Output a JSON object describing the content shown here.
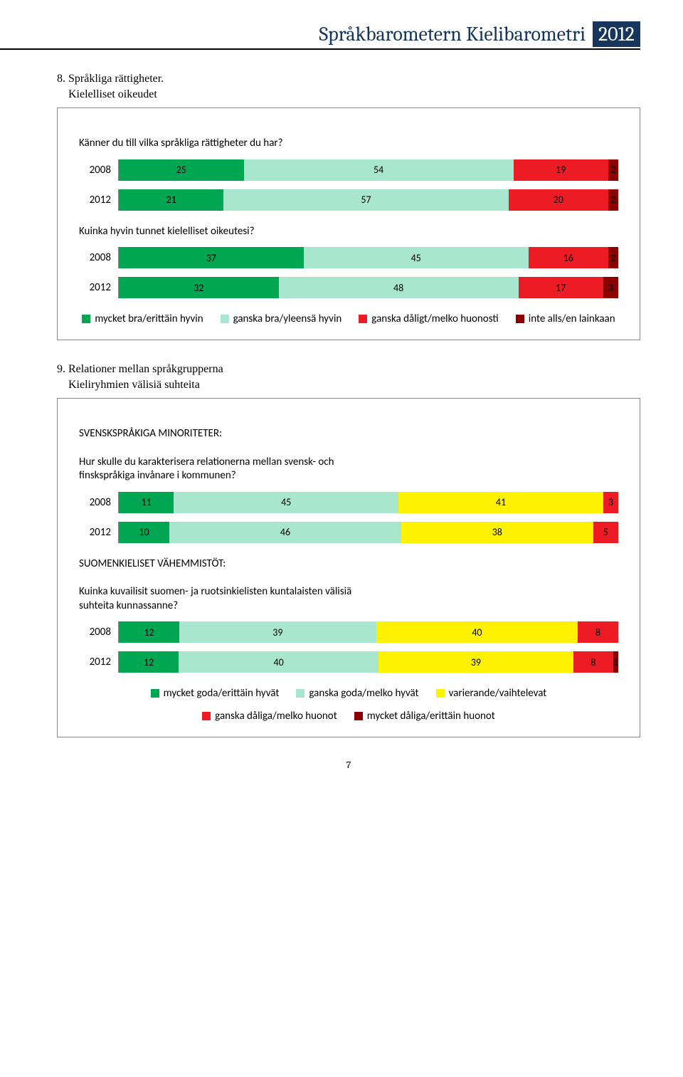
{
  "header": {
    "title": "Språkbarometern Kielibarometri",
    "year": "2012"
  },
  "section1": {
    "number": "8.",
    "title_sv": "Språkliga rättigheter.",
    "title_fi": "Kielelliset oikeudet"
  },
  "chart1": {
    "type": "stacked_bar_horizontal",
    "label_fontsize": 15,
    "value_fontsize": 14,
    "groups": [
      {
        "label": "Känner du till vilka språkliga rättigheter du har?",
        "rows": [
          {
            "year": "2008",
            "values": [
              25,
              54,
              19,
              2
            ]
          },
          {
            "year": "2012",
            "values": [
              21,
              57,
              20,
              2
            ]
          }
        ]
      },
      {
        "label": "Kuinka hyvin tunnet kielelliset oikeutesi?",
        "rows": [
          {
            "year": "2008",
            "values": [
              37,
              45,
              16,
              2
            ]
          },
          {
            "year": "2012",
            "values": [
              32,
              48,
              17,
              3
            ]
          }
        ]
      }
    ],
    "colors": [
      "#00a651",
      "#a8e6cf",
      "#ed1c24",
      "#8b0000"
    ],
    "legend": [
      {
        "label": "mycket bra/erittäin hyvin",
        "color": "#00a651"
      },
      {
        "label": "ganska bra/yleensä hyvin",
        "color": "#a8e6cf"
      },
      {
        "label": "ganska dåligt/melko huonosti",
        "color": "#ed1c24"
      },
      {
        "label": "inte alls/en lainkaan",
        "color": "#8b0000"
      }
    ]
  },
  "section2": {
    "number": "9.",
    "title_sv": "Relationer mellan språkgrupperna",
    "title_fi": "Kieliryhmien välisiä suhteita"
  },
  "chart2": {
    "type": "stacked_bar_horizontal",
    "label_fontsize": 15,
    "value_fontsize": 14,
    "groups": [
      {
        "heading": "SVENSKSPRÅKIGA MINORITETER:",
        "label": "Hur skulle du karakterisera relationerna mellan svensk- och finskspråkiga invånare i kommunen?",
        "rows": [
          {
            "year": "2008",
            "values": [
              11,
              45,
              41,
              3,
              0
            ]
          },
          {
            "year": "2012",
            "values": [
              10,
              46,
              38,
              5,
              0
            ]
          }
        ]
      },
      {
        "heading": "SUOMENKIELISET VÄHEMMISTÖT:",
        "label": "Kuinka kuvailisit suomen- ja ruotsinkielisten kuntalaisten välisiä suhteita kunnassanne?",
        "rows": [
          {
            "year": "2008",
            "values": [
              12,
              39,
              40,
              8,
              0
            ]
          },
          {
            "year": "2012",
            "values": [
              12,
              40,
              39,
              8,
              1
            ]
          }
        ]
      }
    ],
    "colors": [
      "#00a651",
      "#a8e6cf",
      "#fff200",
      "#ed1c24",
      "#8b0000"
    ],
    "legend": [
      {
        "label": "mycket goda/erittäin hyvät",
        "color": "#00a651"
      },
      {
        "label": "ganska goda/melko hyvät",
        "color": "#a8e6cf"
      },
      {
        "label": "varierande/vaihtelevat",
        "color": "#fff200"
      },
      {
        "label": "ganska dåliga/melko huonot",
        "color": "#ed1c24"
      },
      {
        "label": "mycket dåliga/erittäin huonot",
        "color": "#8b0000"
      }
    ]
  },
  "page_number": "7"
}
